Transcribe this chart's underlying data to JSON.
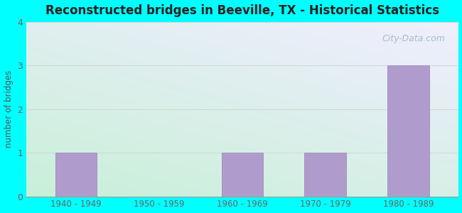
{
  "title": "Reconstructed bridges in Beeville, TX - Historical Statistics",
  "categories": [
    "1940 - 1949",
    "1950 - 1959",
    "1960 - 1969",
    "1970 - 1979",
    "1980 - 1989"
  ],
  "values": [
    1,
    0,
    1,
    1,
    3
  ],
  "bar_color": "#b09ccc",
  "bar_edge_color": "#9980bb",
  "ylabel": "number of bridges",
  "ylim": [
    0,
    4
  ],
  "yticks": [
    0,
    1,
    2,
    3,
    4
  ],
  "background_outer": "#00ffff",
  "grad_bottom_left": "#c8f0d8",
  "grad_top_right": "#f0eeff",
  "grid_color": "#d0d8d0",
  "title_color": "#2c2020",
  "axis_label_color": "#555555",
  "tick_label_color": "#666666",
  "watermark_text": "City-Data.com",
  "watermark_color": "#a8bcc8"
}
